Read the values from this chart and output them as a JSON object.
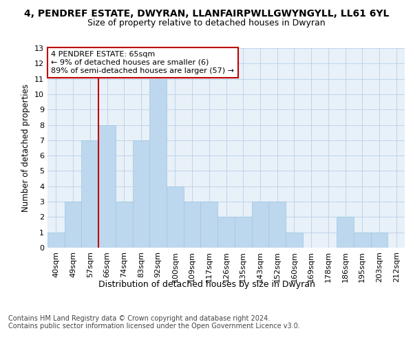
{
  "title": "4, PENDREF ESTATE, DWYRAN, LLANFAIRPWLLGWYNGYLL, LL61 6YL",
  "subtitle": "Size of property relative to detached houses in Dwyran",
  "xlabel": "Distribution of detached houses by size in Dwyran",
  "ylabel": "Number of detached properties",
  "categories": [
    "40sqm",
    "49sqm",
    "57sqm",
    "66sqm",
    "74sqm",
    "83sqm",
    "92sqm",
    "100sqm",
    "109sqm",
    "117sqm",
    "126sqm",
    "135sqm",
    "143sqm",
    "152sqm",
    "160sqm",
    "169sqm",
    "178sqm",
    "186sqm",
    "195sqm",
    "203sqm",
    "212sqm"
  ],
  "values": [
    1,
    3,
    7,
    8,
    3,
    7,
    11,
    4,
    3,
    3,
    2,
    2,
    3,
    3,
    1,
    0,
    0,
    2,
    1,
    1,
    0
  ],
  "bar_color": "#BDD7EE",
  "bar_edgecolor": "#9DC8E0",
  "highlight_index": 3,
  "highlight_color": "#C00000",
  "annotation_text": "4 PENDREF ESTATE: 65sqm\n← 9% of detached houses are smaller (6)\n89% of semi-detached houses are larger (57) →",
  "annotation_box_color": "#C00000",
  "ylim": [
    0,
    13
  ],
  "yticks": [
    0,
    1,
    2,
    3,
    4,
    5,
    6,
    7,
    8,
    9,
    10,
    11,
    12,
    13
  ],
  "footnote": "Contains HM Land Registry data © Crown copyright and database right 2024.\nContains public sector information licensed under the Open Government Licence v3.0.",
  "title_fontsize": 10,
  "subtitle_fontsize": 9,
  "xlabel_fontsize": 9,
  "ylabel_fontsize": 8.5,
  "tick_fontsize": 8,
  "annotation_fontsize": 8,
  "footnote_fontsize": 7,
  "bg_color": "#E8F0F8"
}
